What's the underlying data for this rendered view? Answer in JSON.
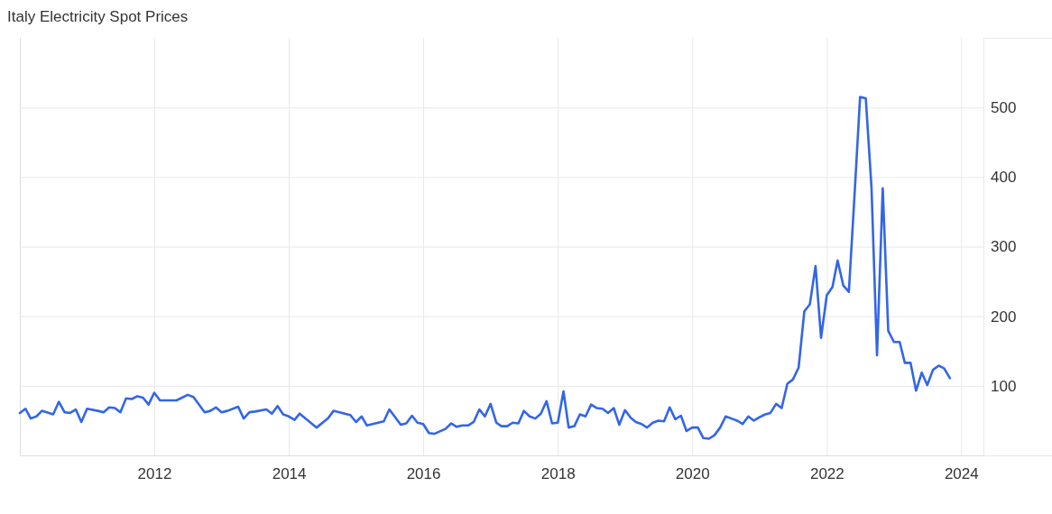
{
  "chart_data": {
    "type": "line",
    "title": "Italy Electricity Spot Prices",
    "x": [
      "2010-01",
      "2010-02",
      "2010-03",
      "2010-04",
      "2010-05",
      "2010-07",
      "2010-08",
      "2010-09",
      "2010-10",
      "2010-11",
      "2010-12",
      "2011-01",
      "2011-03",
      "2011-04",
      "2011-05",
      "2011-06",
      "2011-07",
      "2011-08",
      "2011-09",
      "2011-10",
      "2011-11",
      "2011-12",
      "2012-01",
      "2012-02",
      "2012-05",
      "2012-07",
      "2012-08",
      "2012-10",
      "2012-11",
      "2012-12",
      "2013-01",
      "2013-02",
      "2013-04",
      "2013-05",
      "2013-06",
      "2013-07",
      "2013-09",
      "2013-10",
      "2013-11",
      "2013-12",
      "2014-01",
      "2014-02",
      "2014-03",
      "2014-06",
      "2014-08",
      "2014-09",
      "2014-11",
      "2014-12",
      "2015-01",
      "2015-02",
      "2015-03",
      "2015-06",
      "2015-07",
      "2015-09",
      "2015-10",
      "2015-11",
      "2015-12",
      "2016-01",
      "2016-02",
      "2016-03",
      "2016-05",
      "2016-06",
      "2016-07",
      "2016-08",
      "2016-09",
      "2016-10",
      "2016-11",
      "2016-12",
      "2017-01",
      "2017-02",
      "2017-03",
      "2017-04",
      "2017-05",
      "2017-06",
      "2017-07",
      "2017-08",
      "2017-09",
      "2017-10",
      "2017-11",
      "2017-12",
      "2018-01",
      "2018-02",
      "2018-03",
      "2018-04",
      "2018-05",
      "2018-06",
      "2018-07",
      "2018-08",
      "2018-09",
      "2018-10",
      "2018-11",
      "2018-12",
      "2019-01",
      "2019-02",
      "2019-03",
      "2019-04",
      "2019-05",
      "2019-06",
      "2019-07",
      "2019-08",
      "2019-09",
      "2019-10",
      "2019-11",
      "2019-12",
      "2020-01",
      "2020-02",
      "2020-03",
      "2020-04",
      "2020-05",
      "2020-06",
      "2020-07",
      "2020-08",
      "2020-09",
      "2020-10",
      "2020-11",
      "2020-12",
      "2021-01",
      "2021-02",
      "2021-03",
      "2021-04",
      "2021-05",
      "2021-06",
      "2021-07",
      "2021-08",
      "2021-09",
      "2021-10",
      "2021-11",
      "2021-12",
      "2022-01",
      "2022-02",
      "2022-03",
      "2022-04",
      "2022-05",
      "2022-06",
      "2022-07",
      "2022-08",
      "2022-09",
      "2022-10",
      "2022-11",
      "2022-12",
      "2023-01",
      "2023-02",
      "2023-03",
      "2023-04",
      "2023-05",
      "2023-06",
      "2023-07",
      "2023-08",
      "2023-09",
      "2023-10",
      "2023-11"
    ],
    "series": [
      {
        "color": "#3366e6",
        "values": [
          61,
          67,
          53,
          56,
          64,
          59,
          77,
          62,
          61,
          66,
          48,
          67,
          64,
          62,
          69,
          68,
          62,
          82,
          81,
          85,
          83,
          73,
          90,
          79,
          79,
          87,
          84,
          62,
          64,
          69,
          62,
          64,
          70,
          53,
          62,
          63,
          66,
          60,
          71,
          59,
          56,
          51,
          60,
          40,
          53,
          64,
          60,
          58,
          48,
          56,
          43,
          49,
          66,
          44,
          46,
          57,
          47,
          45,
          32,
          31,
          38,
          46,
          41,
          43,
          43,
          48,
          66,
          56,
          74,
          47,
          42,
          42,
          47,
          46,
          64,
          56,
          53,
          60,
          78,
          46,
          47,
          92,
          40,
          42,
          59,
          56,
          73,
          68,
          67,
          61,
          68,
          44,
          65,
          54,
          48,
          45,
          40,
          47,
          50,
          49,
          69,
          52,
          57,
          35,
          40,
          40,
          25,
          24,
          29,
          40,
          56,
          53,
          50,
          45,
          56,
          50,
          55,
          59,
          61,
          74,
          68,
          103,
          109,
          126,
          207,
          217,
          272,
          169,
          230,
          242,
          280,
          244,
          235,
          375,
          515,
          513,
          385,
          144,
          384,
          179,
          163,
          163,
          133,
          133,
          93,
          119,
          101,
          123,
          129,
          125,
          111
        ]
      }
    ],
    "xlim": [
      "2010-01",
      "2024-05"
    ],
    "xticks": [
      "2012",
      "2014",
      "2016",
      "2018",
      "2020",
      "2022",
      "2024"
    ],
    "ylim": [
      0,
      600
    ],
    "yticks": [
      100,
      200,
      300,
      400,
      500
    ],
    "grid": true,
    "line_style": "solid",
    "marker": "none"
  }
}
